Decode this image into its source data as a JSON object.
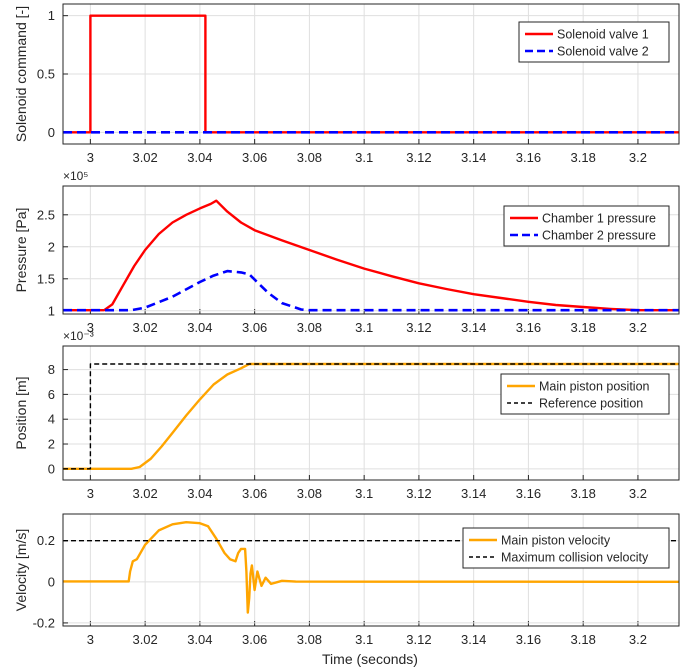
{
  "chart_data": [
    {
      "type": "line",
      "ylabel": "Solenoid command [-]",
      "multiplier": "",
      "xlim": [
        2.99,
        3.215
      ],
      "ylim": [
        -0.1,
        1.1
      ],
      "xticks": [
        "3",
        "3.02",
        "3.04",
        "3.06",
        "3.08",
        "3.1",
        "3.12",
        "3.14",
        "3.16",
        "3.18",
        "3.2"
      ],
      "yticks": [
        "0",
        "0.5",
        "1"
      ],
      "grid": true,
      "legend_position": "top-right",
      "series": [
        {
          "name": "Solenoid valve 1",
          "color": "#ff0000",
          "style": "solid",
          "x": [
            2.99,
            3.0,
            3.0,
            3.042,
            3.042,
            3.215
          ],
          "y": [
            0,
            0,
            1,
            1,
            0,
            0
          ]
        },
        {
          "name": "Solenoid valve 2",
          "color": "#0000ff",
          "style": "dashed",
          "x": [
            2.99,
            3.215
          ],
          "y": [
            0,
            0
          ]
        }
      ]
    },
    {
      "type": "line",
      "ylabel": "Pressure [Pa]",
      "multiplier": "×10⁵",
      "xlim": [
        2.99,
        3.215
      ],
      "ylim": [
        0.95,
        2.95
      ],
      "xticks": [
        "3",
        "3.02",
        "3.04",
        "3.06",
        "3.08",
        "3.1",
        "3.12",
        "3.14",
        "3.16",
        "3.18",
        "3.2"
      ],
      "yticks": [
        "1",
        "1.5",
        "2",
        "2.5"
      ],
      "grid": true,
      "legend_position": "top-right",
      "series": [
        {
          "name": "Chamber 1 pressure",
          "color": "#ff0000",
          "style": "solid",
          "x": [
            2.99,
            3.005,
            3.008,
            3.012,
            3.016,
            3.02,
            3.025,
            3.03,
            3.035,
            3.04,
            3.044,
            3.046,
            3.05,
            3.055,
            3.06,
            3.07,
            3.08,
            3.09,
            3.1,
            3.11,
            3.12,
            3.13,
            3.14,
            3.15,
            3.16,
            3.17,
            3.18,
            3.19,
            3.2,
            3.215
          ],
          "y": [
            1.01,
            1.01,
            1.1,
            1.4,
            1.7,
            1.95,
            2.2,
            2.38,
            2.5,
            2.6,
            2.67,
            2.72,
            2.55,
            2.38,
            2.26,
            2.1,
            1.95,
            1.8,
            1.66,
            1.54,
            1.43,
            1.34,
            1.26,
            1.2,
            1.14,
            1.09,
            1.06,
            1.03,
            1.01,
            1.01
          ]
        },
        {
          "name": "Chamber 2 pressure",
          "color": "#0000ff",
          "style": "dashed",
          "x": [
            2.99,
            3.015,
            3.02,
            3.03,
            3.04,
            3.045,
            3.05,
            3.055,
            3.058,
            3.065,
            3.07,
            3.077,
            3.08,
            3.215
          ],
          "y": [
            1.01,
            1.01,
            1.05,
            1.22,
            1.45,
            1.55,
            1.62,
            1.6,
            1.57,
            1.28,
            1.12,
            1.02,
            1.01,
            1.01
          ]
        }
      ]
    },
    {
      "type": "line",
      "ylabel": "Position [m]",
      "multiplier": "×10⁻³",
      "xlim": [
        2.99,
        3.215
      ],
      "ylim": [
        -0.9,
        9.9
      ],
      "xticks": [
        "3",
        "3.02",
        "3.04",
        "3.06",
        "3.08",
        "3.1",
        "3.12",
        "3.14",
        "3.16",
        "3.18",
        "3.2"
      ],
      "yticks": [
        "0",
        "2",
        "4",
        "6",
        "8"
      ],
      "grid": true,
      "legend_position": "top-right",
      "series": [
        {
          "name": "Main piston position",
          "color": "#ffa500",
          "style": "solid",
          "x": [
            2.99,
            3.015,
            3.018,
            3.022,
            3.026,
            3.03,
            3.035,
            3.04,
            3.045,
            3.05,
            3.055,
            3.058,
            3.215
          ],
          "y": [
            0,
            0,
            0.15,
            0.8,
            1.8,
            2.9,
            4.3,
            5.6,
            6.8,
            7.6,
            8.1,
            8.45,
            8.45
          ]
        },
        {
          "name": "Reference position",
          "color": "#000000",
          "style": "dashed",
          "x": [
            2.99,
            3.0,
            3.0,
            3.215
          ],
          "y": [
            0,
            0,
            8.45,
            8.45
          ]
        }
      ]
    },
    {
      "type": "line",
      "ylabel": "Velocity [m/s]",
      "xlabel": "Time (seconds)",
      "multiplier": "",
      "xlim": [
        2.99,
        3.215
      ],
      "ylim": [
        -0.215,
        0.33
      ],
      "xticks": [
        "3",
        "3.02",
        "3.04",
        "3.06",
        "3.08",
        "3.1",
        "3.12",
        "3.14",
        "3.16",
        "3.18",
        "3.2"
      ],
      "yticks": [
        "-0.2",
        "0",
        "0.2"
      ],
      "grid": true,
      "legend_position": "top-right",
      "series": [
        {
          "name": "Main piston velocity",
          "color": "#ffa500",
          "style": "solid",
          "x": [
            2.99,
            3.014,
            3.0145,
            3.0155,
            3.017,
            3.02,
            3.025,
            3.03,
            3.035,
            3.04,
            3.043,
            3.046,
            3.049,
            3.051,
            3.053,
            3.054,
            3.055,
            3.0565,
            3.057,
            3.0575,
            3.058,
            3.0585,
            3.059,
            3.06,
            3.061,
            3.0625,
            3.064,
            3.066,
            3.07,
            3.075,
            3.215
          ],
          "y": [
            0.002,
            0.002,
            0.05,
            0.1,
            0.11,
            0.18,
            0.25,
            0.28,
            0.29,
            0.285,
            0.27,
            0.21,
            0.14,
            0.11,
            0.1,
            0.14,
            0.16,
            0.16,
            0.05,
            -0.15,
            -0.08,
            0.04,
            0.08,
            -0.04,
            0.05,
            -0.02,
            0.02,
            -0.01,
            0.005,
            0.001,
            0.0
          ]
        },
        {
          "name": "Maximum collision velocity",
          "color": "#000000",
          "style": "dashed",
          "x": [
            2.99,
            3.215
          ],
          "y": [
            0.2,
            0.2
          ]
        }
      ]
    }
  ]
}
